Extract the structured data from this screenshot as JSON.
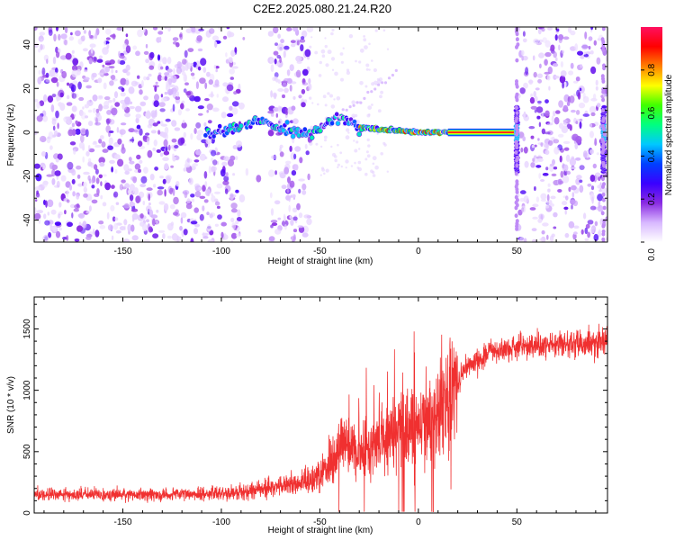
{
  "title": "C2E2.2025.080.21.24.R20",
  "chart_data": [
    {
      "type": "heatmap",
      "xlabel": "Height of straight line (km)",
      "ylabel": "Frequency (Hz)",
      "xlim": [
        -195,
        96
      ],
      "ylim": [
        -50,
        48
      ],
      "x_ticks": [
        -150,
        -100,
        -50,
        0,
        50
      ],
      "y_ticks": [
        -40,
        -20,
        0,
        20,
        40
      ],
      "colorbar": {
        "label": "Normalized spectral amplitude",
        "range": [
          0,
          1
        ],
        "ticks": [
          "0.0",
          "0.2",
          "0.4",
          "0.6",
          "0.8"
        ],
        "colors": [
          "#ffffff",
          "#d8b8ff",
          "#8a2be2",
          "#3a00ff",
          "#0040ff",
          "#00c8ff",
          "#00ff80",
          "#40ff00",
          "#ffff00",
          "#ff8000",
          "#ff0000",
          "#ff1060"
        ]
      },
      "gaps_km": [
        [
          -90,
          -75
        ],
        [
          -55,
          50
        ],
        [
          55,
          57
        ]
      ],
      "ridge": {
        "points": [
          {
            "x": -105,
            "y": 0.0
          },
          {
            "x": -95,
            "y": 2.0
          },
          {
            "x": -80,
            "y": 5.0
          },
          {
            "x": -55,
            "y": -1.0
          },
          {
            "x": -40,
            "y": 7.0
          },
          {
            "x": -30,
            "y": 2.0
          },
          {
            "x": 0,
            "y": 0.0
          },
          {
            "x": 50,
            "y": 0.0
          }
        ]
      },
      "spikes_km": [
        50,
        94
      ]
    },
    {
      "type": "line",
      "xlabel": "Height of straight line (km)",
      "ylabel": "SNR (10 * v/v)",
      "xlim": [
        -195,
        96
      ],
      "ylim": [
        0,
        1760
      ],
      "x_ticks": [
        -150,
        -100,
        -50,
        0,
        50
      ],
      "y_ticks": [
        0,
        500,
        1000,
        1500
      ],
      "series_color": "#f03030",
      "envelope": [
        {
          "x": -195,
          "y": 150
        },
        {
          "x": -120,
          "y": 150
        },
        {
          "x": -90,
          "y": 170
        },
        {
          "x": -70,
          "y": 220
        },
        {
          "x": -55,
          "y": 250
        },
        {
          "x": -45,
          "y": 400
        },
        {
          "x": -38,
          "y": 570
        },
        {
          "x": -30,
          "y": 480
        },
        {
          "x": -20,
          "y": 620
        },
        {
          "x": -10,
          "y": 720
        },
        {
          "x": 0,
          "y": 680
        },
        {
          "x": 10,
          "y": 800
        },
        {
          "x": 20,
          "y": 1050
        },
        {
          "x": 25,
          "y": 1200
        },
        {
          "x": 35,
          "y": 1300
        },
        {
          "x": 50,
          "y": 1350
        },
        {
          "x": 70,
          "y": 1370
        },
        {
          "x": 96,
          "y": 1400
        }
      ]
    }
  ]
}
